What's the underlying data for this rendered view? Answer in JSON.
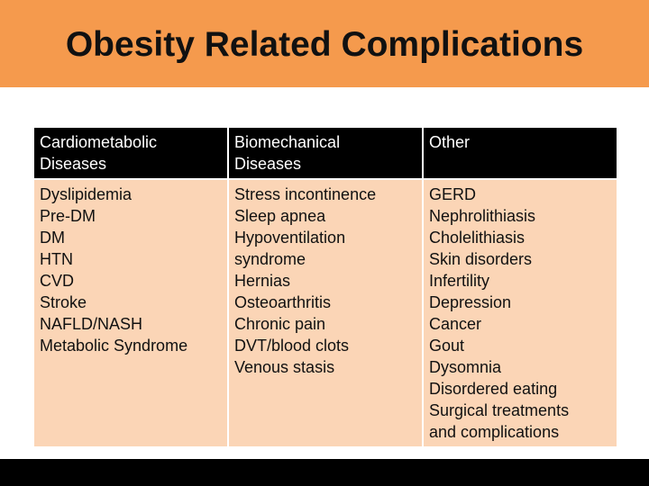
{
  "slide": {
    "title": "Obesity Related Complications"
  },
  "table": {
    "headers": [
      [
        "Cardiometabolic",
        "Diseases"
      ],
      [
        "Biomechanical",
        "Diseases"
      ],
      [
        "Other"
      ]
    ],
    "columns": [
      [
        "Dyslipidemia",
        "Pre-DM",
        "DM",
        "HTN",
        "CVD",
        "Stroke",
        "NAFLD/NASH",
        "Metabolic Syndrome"
      ],
      [
        "Stress incontinence",
        "Sleep apnea",
        "Hypoventilation",
        "syndrome",
        "Hernias",
        "Osteoarthritis",
        "Chronic pain",
        "DVT/blood clots",
        "Venous stasis"
      ],
      [
        "GERD",
        "Nephrolithiasis",
        "Cholelithiasis",
        "Skin disorders",
        "Infertility",
        "Depression",
        "Cancer",
        "Gout",
        "Dysomnia",
        "Disordered eating",
        "Surgical treatments",
        "and complications"
      ]
    ]
  },
  "colors": {
    "title_band": "#f59a4d",
    "header_bg": "#000000",
    "body_bg": "#fbd5b6",
    "footer": "#000000"
  }
}
